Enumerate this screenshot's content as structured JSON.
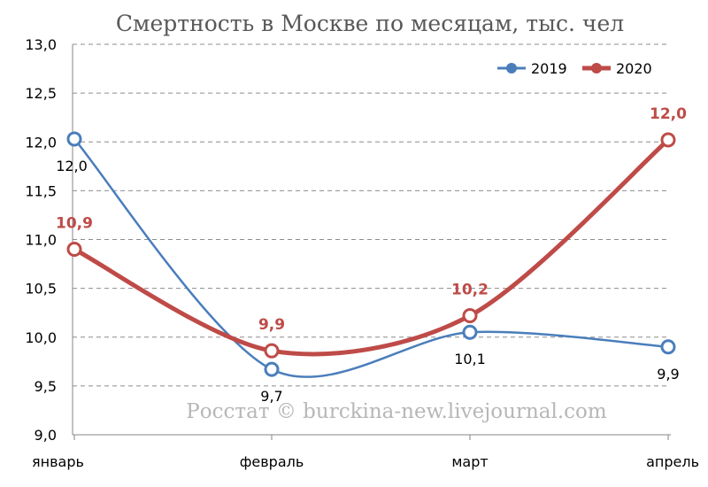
{
  "chart_data": {
    "type": "line",
    "title": "Смертность в Москве по месяцам, тыс. чел",
    "categories": [
      "январь",
      "февраль",
      "март",
      "апрель"
    ],
    "ylim": [
      9.0,
      13.0
    ],
    "ytick_labels": [
      "9,0",
      "9,5",
      "10,0",
      "10,5",
      "11,0",
      "11,5",
      "12,0",
      "12,5",
      "13,0"
    ],
    "grid": true,
    "legend_position": "top-right",
    "series": [
      {
        "name": "2019",
        "values": [
          12.03,
          9.67,
          10.05,
          9.9
        ],
        "labels": [
          "12,0",
          "9,7",
          "10,1",
          "9,9"
        ],
        "color": "#4a7ebb",
        "label_color": "#000000"
      },
      {
        "name": "2020",
        "values": [
          10.9,
          9.86,
          10.22,
          12.02
        ],
        "labels": [
          "10,9",
          "9,9",
          "10,2",
          "12,0"
        ],
        "color": "#be4b48",
        "label_color": "#be4b48"
      }
    ]
  },
  "watermark": "Росстат © burckina-new.livejournal.com"
}
